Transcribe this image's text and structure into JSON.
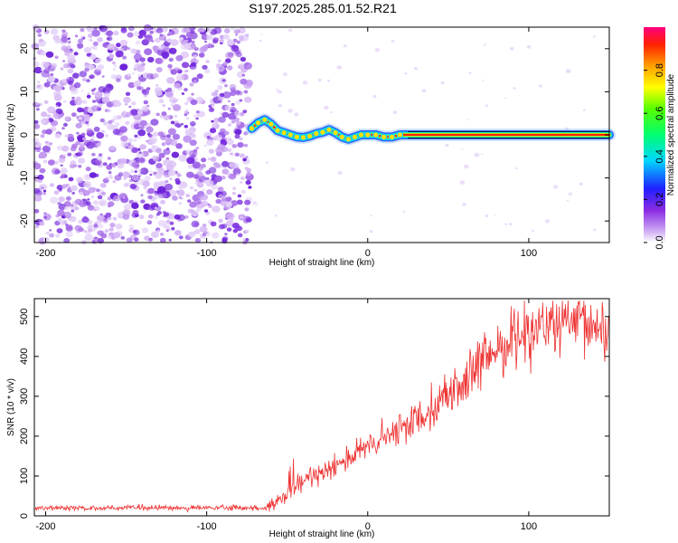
{
  "title": "S197.2025.285.01.52.R21",
  "chart_data": [
    {
      "type": "heatmap",
      "xlabel": "Height of straight line (km)",
      "ylabel": "Frequency (Hz)",
      "xlim": [
        -207,
        150
      ],
      "ylim": [
        -25,
        25
      ],
      "xticks": [
        -200,
        -100,
        0,
        100
      ],
      "yticks": [
        -20,
        -10,
        0,
        10,
        20
      ],
      "noise_region_x": [
        -207,
        -73
      ],
      "signal_track": {
        "x": [
          -72,
          -68,
          -64,
          -60,
          -56,
          -52,
          -48,
          -44,
          -40,
          -36,
          -32,
          -28,
          -24,
          -20,
          -16,
          -12,
          -8,
          -4,
          0,
          5,
          10,
          15,
          20,
          25,
          40,
          60,
          80,
          100,
          120,
          150
        ],
        "y": [
          1.5,
          2.8,
          3.5,
          2.5,
          1.0,
          0.5,
          0.0,
          -0.5,
          -0.6,
          -0.3,
          0.3,
          0.6,
          1.2,
          0.5,
          -0.5,
          -1.0,
          -0.5,
          0.0,
          0.0,
          0.0,
          -0.5,
          -0.5,
          0.0,
          0.0,
          0.0,
          0.0,
          0.0,
          0.0,
          0.0,
          0.0
        ]
      },
      "colorbar": {
        "label": "Normalized spectral amplitude",
        "range": [
          0,
          1
        ],
        "ticks": [
          "0.0",
          "0.2",
          "0.4",
          "0.6",
          "0.8"
        ]
      }
    },
    {
      "type": "line",
      "xlabel": "Height of straight line (km)",
      "ylabel": "SNR (10 * v/v)",
      "xlim": [
        -207,
        150
      ],
      "ylim": [
        0,
        545
      ],
      "xticks": [
        -200,
        -100,
        0,
        100
      ],
      "yticks": [
        0,
        100,
        200,
        300,
        400,
        500
      ],
      "color": "#ee3030",
      "trend": {
        "x": [
          -207,
          -62,
          -55,
          -45,
          -35,
          -20,
          0,
          20,
          40,
          60,
          80,
          100,
          120,
          150
        ],
        "y": [
          20,
          20,
          35,
          70,
          100,
          130,
          170,
          215,
          275,
          335,
          420,
          470,
          480,
          470
        ]
      }
    }
  ]
}
